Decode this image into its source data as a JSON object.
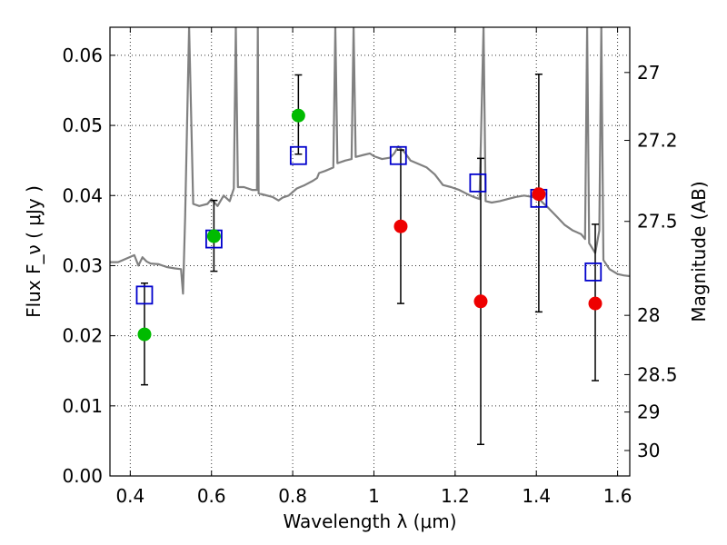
{
  "chart_data": {
    "type": "scatter",
    "xlabel": "Wavelength  λ (μm)",
    "ylabel": "Flux  F_ν  ( μJy )",
    "ylabel_right": "Magnitude (AB)",
    "xlim": [
      0.35,
      1.63
    ],
    "ylim": [
      0.0,
      0.064
    ],
    "grid": true,
    "x_ticks": [
      0.4,
      0.6,
      0.8,
      1.0,
      1.2,
      1.4,
      1.6
    ],
    "x_tick_labels": [
      "0.4",
      "0.6",
      "0.8",
      "1",
      "1.2",
      "1.4",
      "1.6"
    ],
    "y_ticks": [
      0.0,
      0.01,
      0.02,
      0.03,
      0.04,
      0.05,
      0.06
    ],
    "y_tick_labels": [
      "0.00",
      "0.01",
      "0.02",
      "0.03",
      "0.04",
      "0.05",
      "0.06"
    ],
    "mag_ticks": [
      27.0,
      27.2,
      27.5,
      28.0,
      28.5,
      29.0,
      30.0
    ],
    "mag_tick_labels": [
      "27",
      "27.2",
      "27.5",
      "28",
      "28.5",
      "29",
      "30"
    ],
    "colors": {
      "template": "#808080",
      "model_box": "#0000cc",
      "detection": "#00bb00",
      "upper": "#ee0000",
      "errorbar": "#000000"
    },
    "series": [
      {
        "kind": "model_photometry",
        "points": [
          {
            "x": 0.435,
            "y": 0.0258
          },
          {
            "x": 0.606,
            "y": 0.0338
          },
          {
            "x": 0.814,
            "y": 0.0457
          },
          {
            "x": 1.06,
            "y": 0.0457
          },
          {
            "x": 1.256,
            "y": 0.0418
          },
          {
            "x": 1.406,
            "y": 0.0396
          },
          {
            "x": 1.54,
            "y": 0.0291
          }
        ]
      },
      {
        "kind": "observed_detections",
        "points": [
          {
            "x": 0.435,
            "y": 0.0202,
            "ylo": 0.013,
            "yhi": 0.0275
          },
          {
            "x": 0.606,
            "y": 0.0342,
            "ylo": 0.0292,
            "yhi": 0.0393
          },
          {
            "x": 0.814,
            "y": 0.0514,
            "ylo": 0.0459,
            "yhi": 0.0572
          }
        ]
      },
      {
        "kind": "observed_low_sn",
        "points": [
          {
            "x": 1.066,
            "y": 0.0356,
            "ylo": 0.0246,
            "yhi": 0.0465
          },
          {
            "x": 1.263,
            "y": 0.0249,
            "ylo": 0.0045,
            "yhi": 0.0453
          },
          {
            "x": 1.406,
            "y": 0.0402,
            "ylo": 0.0234,
            "yhi": 0.0573
          },
          {
            "x": 1.545,
            "y": 0.0246,
            "ylo": 0.0136,
            "yhi": 0.0359
          }
        ]
      }
    ],
    "template_spectrum": [
      [
        0.35,
        0.0305
      ],
      [
        0.37,
        0.0305
      ],
      [
        0.39,
        0.031
      ],
      [
        0.41,
        0.0315
      ],
      [
        0.42,
        0.03
      ],
      [
        0.43,
        0.0312
      ],
      [
        0.44,
        0.0306
      ],
      [
        0.45,
        0.0303
      ],
      [
        0.47,
        0.0302
      ],
      [
        0.49,
        0.0298
      ],
      [
        0.51,
        0.0296
      ],
      [
        0.525,
        0.0295
      ],
      [
        0.53,
        0.026
      ],
      [
        0.535,
        0.0368
      ],
      [
        0.545,
        0.064
      ],
      [
        0.555,
        0.0388
      ],
      [
        0.57,
        0.0385
      ],
      [
        0.59,
        0.0388
      ],
      [
        0.6,
        0.0395
      ],
      [
        0.615,
        0.0385
      ],
      [
        0.63,
        0.04
      ],
      [
        0.645,
        0.0392
      ],
      [
        0.655,
        0.041
      ],
      [
        0.66,
        0.064
      ],
      [
        0.665,
        0.0412
      ],
      [
        0.68,
        0.0412
      ],
      [
        0.7,
        0.0408
      ],
      [
        0.712,
        0.0408
      ],
      [
        0.714,
        0.064
      ],
      [
        0.716,
        0.0403
      ],
      [
        0.73,
        0.0401
      ],
      [
        0.75,
        0.0398
      ],
      [
        0.765,
        0.0393
      ],
      [
        0.775,
        0.0397
      ],
      [
        0.79,
        0.04
      ],
      [
        0.81,
        0.041
      ],
      [
        0.83,
        0.0415
      ],
      [
        0.85,
        0.0421
      ],
      [
        0.86,
        0.0425
      ],
      [
        0.865,
        0.0432
      ],
      [
        0.88,
        0.0435
      ],
      [
        0.9,
        0.044
      ],
      [
        0.905,
        0.064
      ],
      [
        0.91,
        0.0446
      ],
      [
        0.93,
        0.045
      ],
      [
        0.945,
        0.0452
      ],
      [
        0.95,
        0.064
      ],
      [
        0.955,
        0.0455
      ],
      [
        0.975,
        0.0458
      ],
      [
        0.99,
        0.046
      ],
      [
        1.0,
        0.0456
      ],
      [
        1.02,
        0.0452
      ],
      [
        1.04,
        0.0454
      ],
      [
        1.05,
        0.046
      ],
      [
        1.06,
        0.047
      ],
      [
        1.075,
        0.0462
      ],
      [
        1.09,
        0.045
      ],
      [
        1.11,
        0.0445
      ],
      [
        1.13,
        0.044
      ],
      [
        1.15,
        0.043
      ],
      [
        1.17,
        0.0415
      ],
      [
        1.19,
        0.0412
      ],
      [
        1.21,
        0.0408
      ],
      [
        1.23,
        0.0402
      ],
      [
        1.245,
        0.0398
      ],
      [
        1.26,
        0.0395
      ],
      [
        1.27,
        0.064
      ],
      [
        1.275,
        0.0392
      ],
      [
        1.29,
        0.039
      ],
      [
        1.31,
        0.0392
      ],
      [
        1.33,
        0.0395
      ],
      [
        1.35,
        0.0398
      ],
      [
        1.37,
        0.04
      ],
      [
        1.39,
        0.0398
      ],
      [
        1.41,
        0.0393
      ],
      [
        1.43,
        0.0382
      ],
      [
        1.45,
        0.037
      ],
      [
        1.47,
        0.0358
      ],
      [
        1.49,
        0.035
      ],
      [
        1.51,
        0.0345
      ],
      [
        1.52,
        0.0338
      ],
      [
        1.525,
        0.064
      ],
      [
        1.53,
        0.0332
      ],
      [
        1.545,
        0.0318
      ],
      [
        1.555,
        0.035
      ],
      [
        1.56,
        0.064
      ],
      [
        1.565,
        0.0308
      ],
      [
        1.58,
        0.0295
      ],
      [
        1.6,
        0.0288
      ],
      [
        1.615,
        0.0286
      ],
      [
        1.63,
        0.0285
      ]
    ]
  }
}
